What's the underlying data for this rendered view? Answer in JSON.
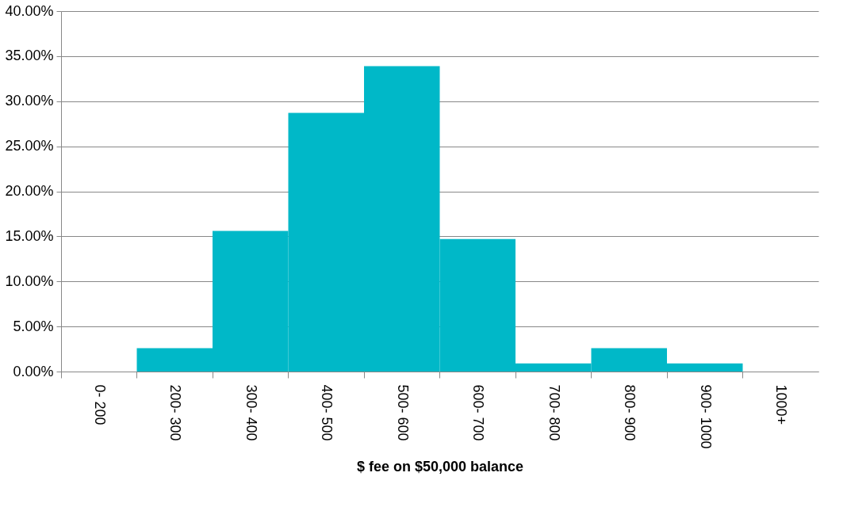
{
  "chart_data": {
    "type": "bar",
    "xlabel": "$ fee on $50,000 balance",
    "categories": [
      "0- 200",
      "200- 300",
      "300- 400",
      "400- 500",
      "500- 600",
      "600- 700",
      "700- 800",
      "800- 900",
      "900- 1000",
      "1000+"
    ],
    "values": [
      0,
      2.6,
      15.6,
      28.7,
      33.9,
      14.7,
      0.9,
      2.6,
      0.9,
      0
    ],
    "color": "#00b8c8",
    "ylim": [
      0,
      40
    ],
    "yticks": [
      {
        "value": 0,
        "label": "0.00%"
      },
      {
        "value": 5,
        "label": "5.00%"
      },
      {
        "value": 10,
        "label": "10.00%"
      },
      {
        "value": 15,
        "label": "15.00%"
      },
      {
        "value": 20,
        "label": "20.00%"
      },
      {
        "value": 25,
        "label": "25.00%"
      },
      {
        "value": 30,
        "label": "30.00%"
      },
      {
        "value": 35,
        "label": "35.00%"
      },
      {
        "value": 40,
        "label": "40.00%"
      }
    ],
    "grid": "y"
  }
}
